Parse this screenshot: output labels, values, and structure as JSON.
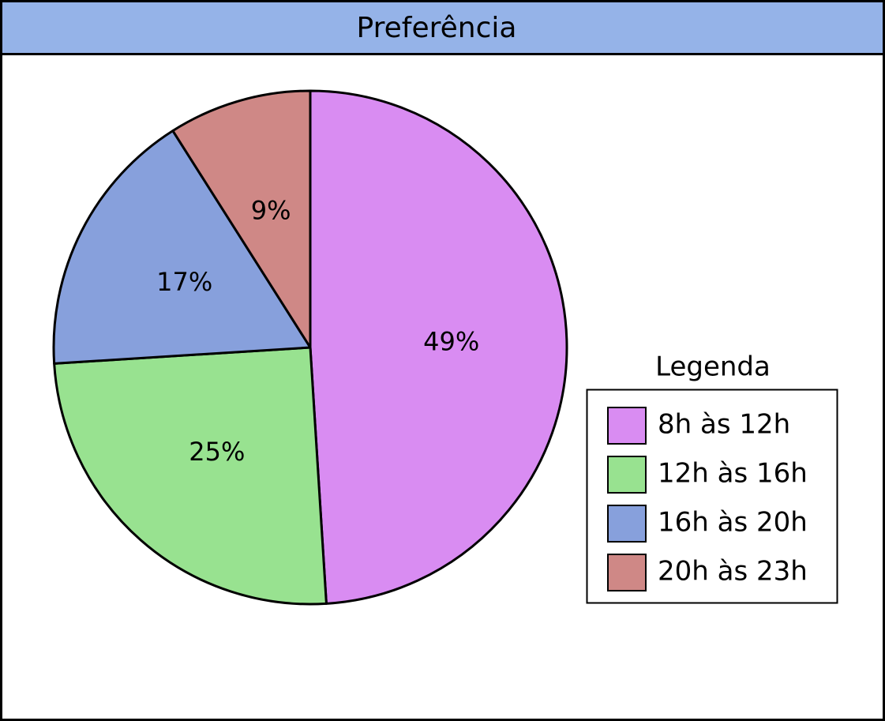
{
  "chart_data": {
    "type": "pie",
    "title": "Preferência",
    "categories": [
      "8h às 12h",
      "12h às 16h",
      "16h às 20h",
      "20h às 23h"
    ],
    "values": [
      49,
      25,
      17,
      9
    ],
    "value_labels": [
      "49%",
      "25%",
      "17%",
      "9%"
    ],
    "colors": [
      "#d98cf2",
      "#98e290",
      "#87a0dc",
      "#cf8886"
    ],
    "legend_title": "Legenda"
  }
}
